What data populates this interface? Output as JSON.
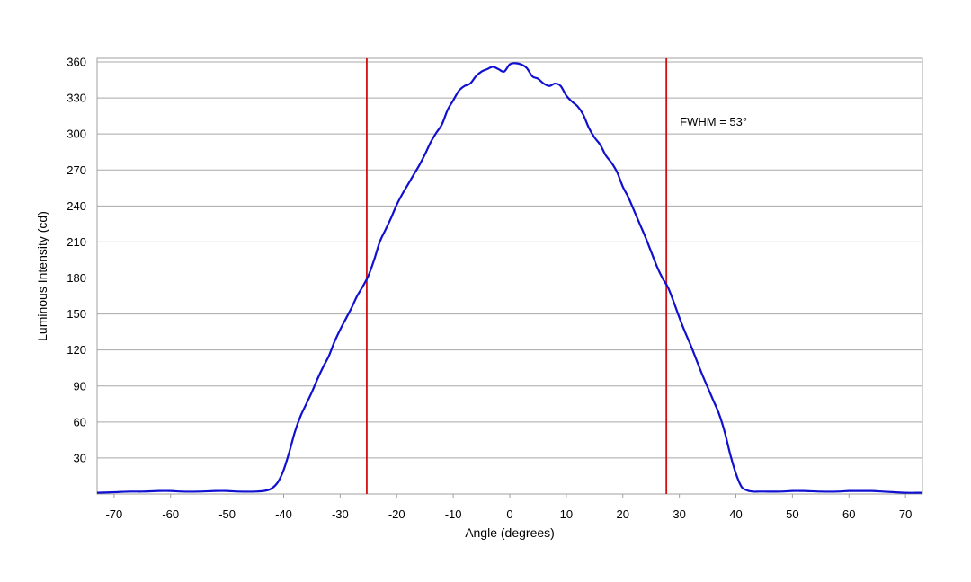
{
  "chart_data": {
    "type": "line",
    "title": "",
    "xlabel": "Angle (degrees)",
    "ylabel": "Luminous Intensity (cd)",
    "xlim": [
      -73,
      73
    ],
    "ylim": [
      0,
      363
    ],
    "x_ticks": [
      -70,
      -60,
      -50,
      -40,
      -30,
      -20,
      -10,
      0,
      10,
      20,
      30,
      40,
      50,
      60,
      70
    ],
    "y_ticks": [
      30,
      60,
      90,
      120,
      150,
      180,
      210,
      240,
      270,
      300,
      330,
      360
    ],
    "grid": "horizontal",
    "line_color": "#1010d0",
    "marker_color": "#d01010",
    "series": [
      {
        "x": [
          -73,
          -70,
          -67,
          -65,
          -62,
          -60,
          -58,
          -55,
          -52,
          -50,
          -48,
          -45,
          -43,
          -42,
          -41,
          -40,
          -39,
          -38,
          -37,
          -36,
          -35,
          -34,
          -33,
          -32,
          -31,
          -30,
          -29,
          -28,
          -27,
          -26,
          -25,
          -24,
          -23,
          -22,
          -21,
          -20,
          -19,
          -18,
          -17,
          -16,
          -15,
          -14,
          -13,
          -12,
          -11,
          -10,
          -9,
          -8,
          -7,
          -6,
          -5,
          -4,
          -3,
          -2,
          -1,
          0,
          1,
          2,
          3,
          4,
          5,
          6,
          7,
          8,
          9,
          10,
          11,
          12,
          13,
          14,
          15,
          16,
          17,
          18,
          19,
          20,
          21,
          22,
          23,
          24,
          25,
          26,
          27,
          28,
          29,
          30,
          31,
          32,
          33,
          34,
          35,
          36,
          37,
          38,
          39,
          40,
          41,
          42,
          43,
          44,
          45,
          48,
          50,
          52,
          55,
          58,
          60,
          62,
          64,
          66,
          68,
          70,
          72,
          73
        ],
        "values": [
          1,
          1.5,
          2,
          2,
          2.5,
          2.5,
          2,
          2,
          2.5,
          2.5,
          2,
          2,
          3,
          5,
          10,
          20,
          35,
          52,
          65,
          75,
          85,
          96,
          106,
          115,
          127,
          137,
          146,
          155,
          165,
          173,
          182,
          195,
          210,
          220,
          230,
          241,
          250,
          258,
          266,
          274,
          283,
          293,
          301,
          308,
          320,
          328,
          336,
          340,
          342,
          348,
          352,
          354,
          356,
          354,
          352,
          358,
          359,
          358,
          355,
          348,
          346,
          342,
          340,
          342,
          340,
          332,
          327,
          323,
          316,
          305,
          297,
          291,
          282,
          276,
          268,
          256,
          247,
          236,
          225,
          214,
          202,
          190,
          180,
          172,
          160,
          147,
          135,
          124,
          112,
          100,
          89,
          78,
          67,
          52,
          33,
          17,
          6,
          3,
          2,
          2,
          2,
          2,
          2.5,
          2.5,
          2,
          2,
          2.5,
          2.5,
          2.5,
          2,
          1.5,
          1,
          1,
          1
        ]
      }
    ],
    "vertical_markers": [
      -25.3,
      27.7
    ],
    "annotations": [
      "FWHM = 53°"
    ]
  }
}
